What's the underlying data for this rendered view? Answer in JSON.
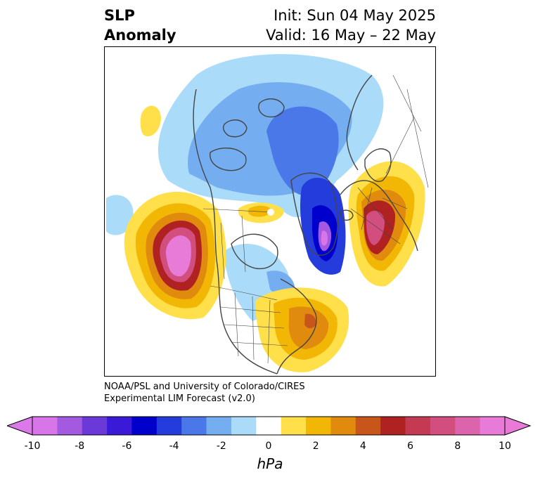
{
  "title": {
    "line1": "SLP",
    "line2": "Anomaly"
  },
  "init": "Init: Sun 04 May 2025",
  "valid": "Valid: 16 May – 22 May",
  "credit": {
    "line1": "NOAA/PSL and University of Colorado/CIRES",
    "line2": "Experimental LIM Forecast (v2.0)"
  },
  "colorbar": {
    "unit": "hPa",
    "ticks": [
      "-10",
      "-8",
      "-6",
      "-4",
      "-2",
      "0",
      "2",
      "4",
      "6",
      "8",
      "10"
    ],
    "levels": [
      -10,
      -9,
      -8,
      -7,
      -6,
      -5,
      -4,
      -3,
      -2,
      -1,
      1,
      2,
      3,
      4,
      5,
      6,
      7,
      8,
      9,
      10
    ],
    "under_color": "#d97ae8",
    "over_color": "#ea7ad8",
    "colors": [
      "#d875e8",
      "#a35ae0",
      "#6c39d9",
      "#3a1ad6",
      "#0000cc",
      "#243cdc",
      "#4a78e8",
      "#74aef0",
      "#aadcfa",
      "#ffffff",
      "#ffe04a",
      "#f2b705",
      "#e08b0e",
      "#c8561a",
      "#b02222",
      "#c43a52",
      "#d24e7e",
      "#dc64ac",
      "#e87ad8"
    ]
  }
}
